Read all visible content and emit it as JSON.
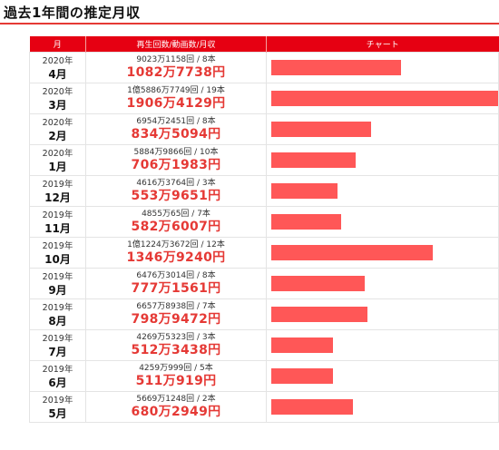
{
  "page_title": "過去1年間の推定月収",
  "table": {
    "headers": {
      "month": "月",
      "stats": "再生回数/動画数/月収",
      "chart": "チャート"
    },
    "rows": [
      {
        "year": "2020年",
        "month": "4月",
        "stats": "9023万1158回 / 8本",
        "income": "1082万7738円",
        "income_yen": 10827738
      },
      {
        "year": "2020年",
        "month": "3月",
        "stats": "1億5886万7749回 / 19本",
        "income": "1906万4129円",
        "income_yen": 19064129
      },
      {
        "year": "2020年",
        "month": "2月",
        "stats": "6954万2451回 / 8本",
        "income": "834万5094円",
        "income_yen": 8345094
      },
      {
        "year": "2020年",
        "month": "1月",
        "stats": "5884万9866回 / 10本",
        "income": "706万1983円",
        "income_yen": 7061983
      },
      {
        "year": "2019年",
        "month": "12月",
        "stats": "4616万3764回 / 3本",
        "income": "553万9651円",
        "income_yen": 5539651
      },
      {
        "year": "2019年",
        "month": "11月",
        "stats": "4855万65回 / 7本",
        "income": "582万6007円",
        "income_yen": 5826007
      },
      {
        "year": "2019年",
        "month": "10月",
        "stats": "1億1224万3672回 / 12本",
        "income": "1346万9240円",
        "income_yen": 13469240
      },
      {
        "year": "2019年",
        "month": "9月",
        "stats": "6476万3014回 / 8本",
        "income": "777万1561円",
        "income_yen": 7771561
      },
      {
        "year": "2019年",
        "month": "8月",
        "stats": "6657万8938回 / 7本",
        "income": "798万9472円",
        "income_yen": 7989472
      },
      {
        "year": "2019年",
        "month": "7月",
        "stats": "4269万5323回 / 3本",
        "income": "512万3438円",
        "income_yen": 5123438
      },
      {
        "year": "2019年",
        "month": "6月",
        "stats": "4259万999回 / 5本",
        "income": "511万919円",
        "income_yen": 5110919
      },
      {
        "year": "2019年",
        "month": "5月",
        "stats": "5669万1248回 / 2本",
        "income": "680万2949円",
        "income_yen": 6802949
      }
    ]
  },
  "colors": {
    "accent": "#e60012",
    "bar": "#ff5757",
    "income_text": "#e53935"
  }
}
